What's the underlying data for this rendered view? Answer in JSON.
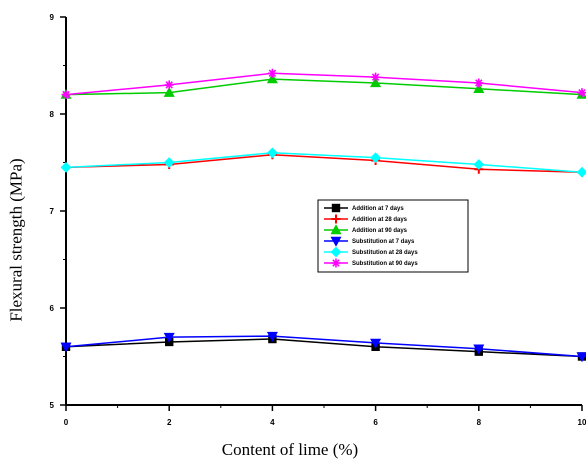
{
  "chart_data": {
    "type": "line",
    "xlabel": "Content of lime (%)",
    "ylabel": "Flexural strength (MPa)",
    "xlim": [
      0,
      10
    ],
    "ylim": [
      5,
      9
    ],
    "x": [
      0,
      2,
      4,
      6,
      8,
      10
    ],
    "xticks": [
      "0",
      "2",
      "4",
      "6",
      "8",
      "10"
    ],
    "yticks": [
      "5",
      "6",
      "7",
      "8",
      "9"
    ],
    "grid": false,
    "legend_position": "center-right",
    "series": [
      {
        "name": "Addition at 7 days",
        "color": "#000000",
        "marker": "square",
        "values": [
          5.6,
          5.65,
          5.68,
          5.6,
          5.55,
          5.5
        ]
      },
      {
        "name": "Addition at 28 days",
        "color": "#ff0000",
        "marker": "plus",
        "values": [
          7.45,
          7.48,
          7.58,
          7.52,
          7.43,
          7.4
        ]
      },
      {
        "name": "Addition at 90 days",
        "color": "#00cc00",
        "marker": "triangle-up",
        "values": [
          8.2,
          8.22,
          8.36,
          8.32,
          8.26,
          8.2
        ]
      },
      {
        "name": "Substitution at 7 days",
        "color": "#0000ff",
        "marker": "triangle-down",
        "values": [
          5.6,
          5.7,
          5.71,
          5.64,
          5.58,
          5.5
        ]
      },
      {
        "name": "Substitution at 28 days",
        "color": "#00ffff",
        "marker": "diamond",
        "values": [
          7.45,
          7.5,
          7.6,
          7.55,
          7.48,
          7.4
        ]
      },
      {
        "name": "Substitution at 90 days",
        "color": "#ff00ff",
        "marker": "star",
        "values": [
          8.2,
          8.3,
          8.42,
          8.38,
          8.32,
          8.22
        ]
      }
    ]
  }
}
